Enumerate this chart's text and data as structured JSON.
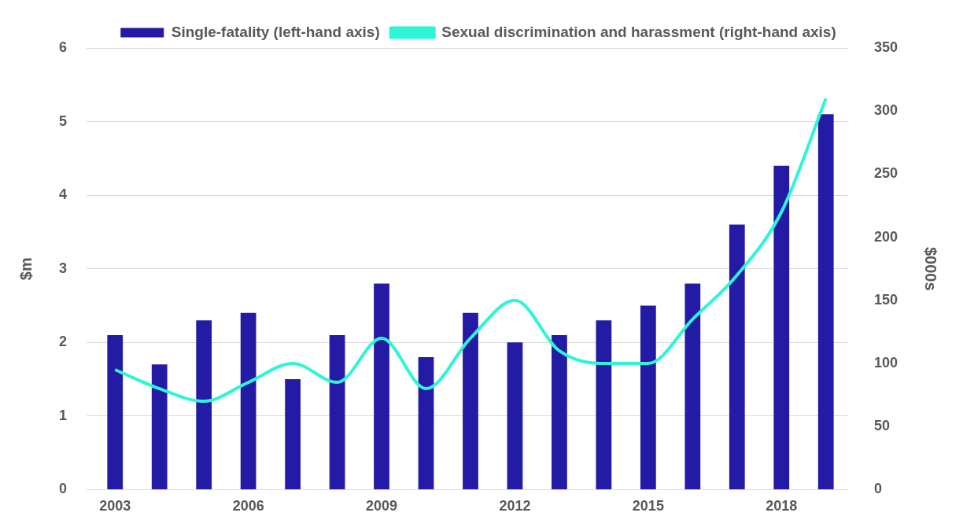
{
  "chart_data": {
    "type": "bar",
    "categories": [
      "2003",
      null,
      null,
      "2006",
      null,
      null,
      "2009",
      null,
      null,
      "2012",
      null,
      null,
      "2015",
      null,
      null,
      "2018",
      null
    ],
    "ylabel": "$m",
    "y2label": "$000s",
    "ylim": [
      0,
      6
    ],
    "yticks": [
      0,
      1,
      2,
      3,
      4,
      5,
      6
    ],
    "y2lim": [
      0,
      350
    ],
    "y2ticks": [
      0,
      50,
      100,
      150,
      200,
      250,
      300,
      350
    ],
    "grid": "y",
    "legend": "top",
    "series": [
      {
        "name": "Single-fatality (left-hand axis)",
        "color": "#231ba5",
        "values": [
          2.1,
          1.7,
          2.3,
          2.4,
          1.5,
          2.1,
          2.8,
          1.8,
          2.4,
          2.0,
          2.1,
          2.3,
          2.5,
          2.8,
          3.6,
          4.4,
          5.1
        ]
      },
      {
        "name": "Sexual discrimination and harassment (right-hand axis)",
        "type": "line",
        "axis": "y2",
        "color": "#2ef5d5",
        "values": [
          95,
          80,
          70,
          85,
          100,
          85,
          120,
          80,
          120,
          150,
          110,
          100,
          100,
          135,
          170,
          220,
          310
        ]
      }
    ]
  }
}
